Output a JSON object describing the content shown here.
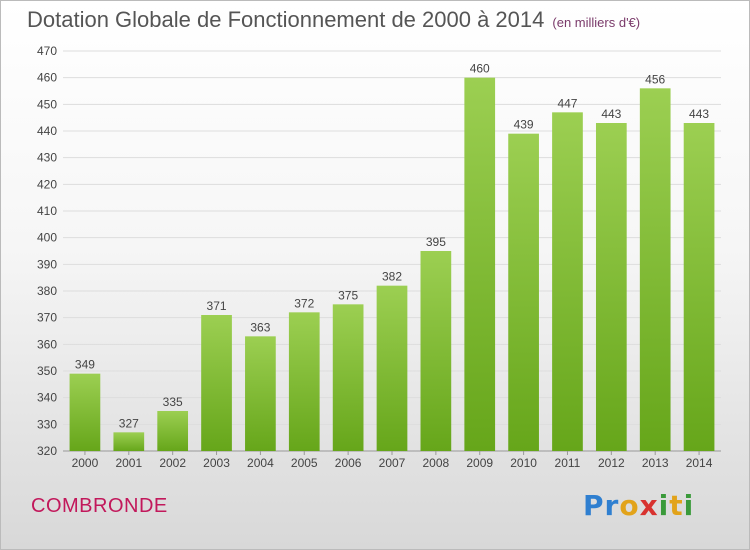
{
  "chart_data": {
    "type": "bar",
    "title": "Dotation Globale de Fonctionnement de 2000 à 2014",
    "subtitle": "(en milliers d'€)",
    "categories": [
      "2000",
      "2001",
      "2002",
      "2003",
      "2004",
      "2005",
      "2006",
      "2007",
      "2008",
      "2009",
      "2010",
      "2011",
      "2012",
      "2013",
      "2014"
    ],
    "values": [
      349,
      327,
      335,
      371,
      363,
      372,
      375,
      382,
      395,
      460,
      439,
      447,
      443,
      456,
      443
    ],
    "ylim": [
      320,
      470
    ],
    "yticks": [
      320,
      330,
      340,
      350,
      360,
      370,
      380,
      390,
      400,
      410,
      420,
      430,
      440,
      450,
      460,
      470
    ],
    "grid": true,
    "bar_color_top": "#9ccf52",
    "bar_color_bottom": "#66a61a"
  },
  "commune": "COMBRONDE",
  "logo_text": "Proxiti"
}
